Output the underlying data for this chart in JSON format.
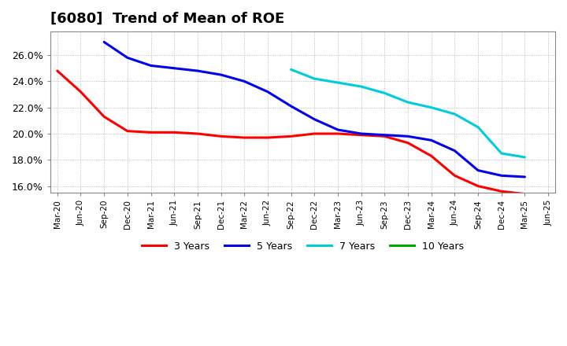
{
  "title": "[6080]  Trend of Mean of ROE",
  "title_fontsize": 13,
  "background_color": "#ffffff",
  "plot_background": "#ffffff",
  "grid_color": "#aaaaaa",
  "ylim": [
    0.155,
    0.278
  ],
  "yticks": [
    0.16,
    0.18,
    0.2,
    0.22,
    0.24,
    0.26
  ],
  "xtick_labels": [
    "Mar-20",
    "Jun-20",
    "Sep-20",
    "Dec-20",
    "Mar-21",
    "Jun-21",
    "Sep-21",
    "Dec-21",
    "Mar-22",
    "Jun-22",
    "Sep-22",
    "Dec-22",
    "Mar-23",
    "Jun-23",
    "Sep-23",
    "Dec-23",
    "Mar-24",
    "Jun-24",
    "Sep-24",
    "Dec-24",
    "Mar-25",
    "Jun-25"
  ],
  "series": [
    {
      "name": "3 Years",
      "color": "#ff0000",
      "x_indices": [
        0,
        1,
        2,
        3,
        4,
        5,
        6,
        7,
        8,
        9,
        10,
        11,
        12,
        13,
        14,
        15,
        16,
        17,
        18,
        19,
        20
      ],
      "values": [
        0.248,
        0.232,
        0.213,
        0.202,
        0.201,
        0.201,
        0.2,
        0.198,
        0.197,
        0.197,
        0.198,
        0.2,
        0.2,
        0.199,
        0.198,
        0.193,
        0.183,
        0.168,
        0.16,
        0.156,
        0.154
      ]
    },
    {
      "name": "5 Years",
      "color": "#0000ee",
      "x_indices": [
        2,
        3,
        4,
        5,
        6,
        7,
        8,
        9,
        10,
        11,
        12,
        13,
        14,
        15,
        16,
        17,
        18,
        19,
        20
      ],
      "values": [
        0.27,
        0.258,
        0.252,
        0.25,
        0.248,
        0.245,
        0.24,
        0.232,
        0.221,
        0.211,
        0.203,
        0.2,
        0.199,
        0.198,
        0.195,
        0.187,
        0.172,
        0.168,
        0.167
      ]
    },
    {
      "name": "7 Years",
      "color": "#00ccdd",
      "x_indices": [
        10,
        11,
        12,
        13,
        14,
        15,
        16,
        17,
        18,
        19,
        20
      ],
      "values": [
        0.249,
        0.242,
        0.239,
        0.236,
        0.231,
        0.224,
        0.22,
        0.215,
        0.205,
        0.185,
        0.182
      ]
    },
    {
      "name": "10 Years",
      "color": "#00aa00",
      "x_indices": [],
      "values": []
    }
  ],
  "legend_order": [
    "3 Years",
    "5 Years",
    "7 Years",
    "10 Years"
  ]
}
